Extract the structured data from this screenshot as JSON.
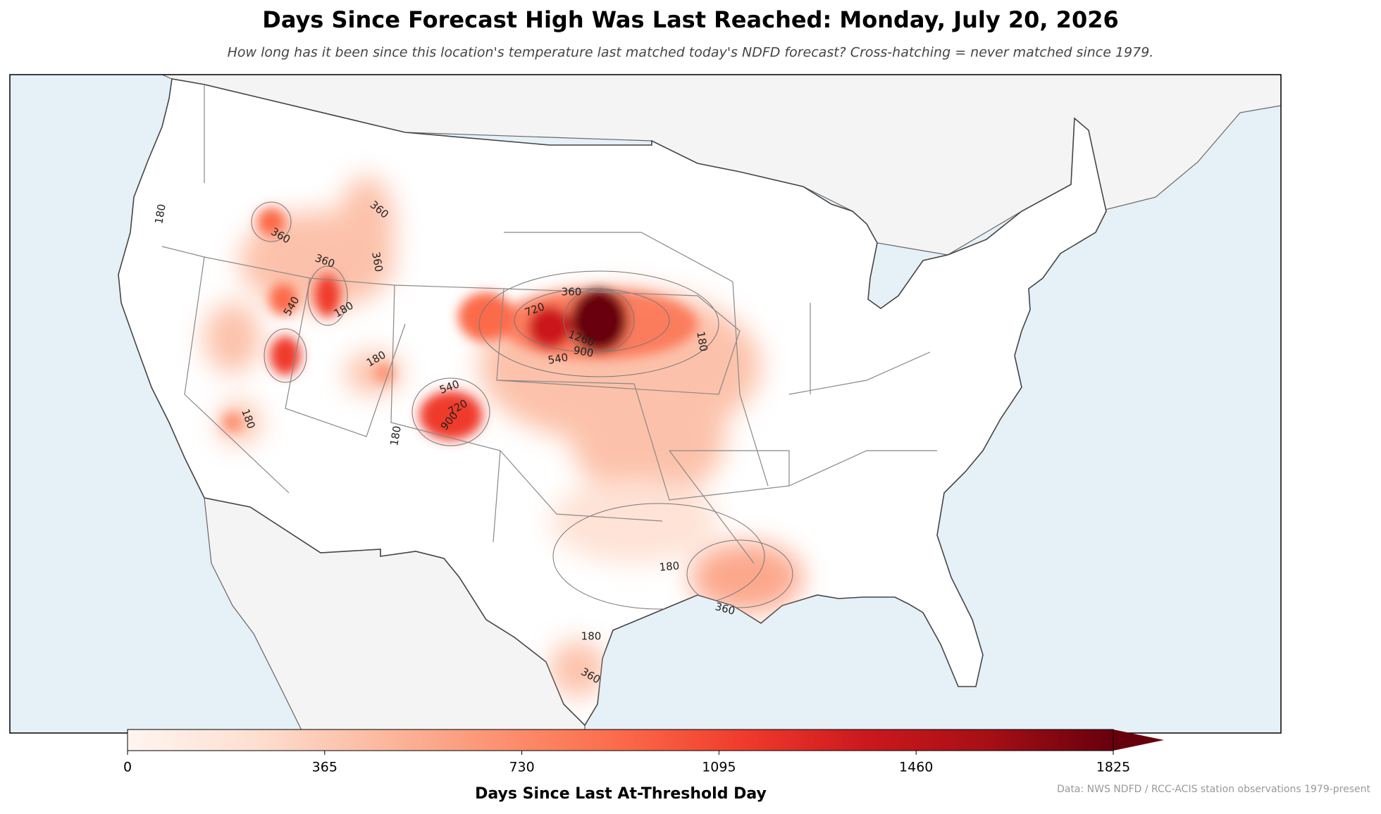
{
  "chart_data": {
    "type": "map",
    "title": "Days Since Forecast High Was Last Reached: Monday, July 20, 2026",
    "subtitle": "How long has it been since this location's temperature last matched today's NDFD forecast? Cross-hatching = never matched since 1979.",
    "colorbar": {
      "label": "Days Since Last At-Threshold Day",
      "lim": [
        0,
        1825
      ],
      "ticks": [
        0,
        365,
        730,
        1095,
        1460,
        1825
      ],
      "colors": [
        "#fff5f0",
        "#fee0d2",
        "#fcbba1",
        "#fc9272",
        "#fb6a4a",
        "#ef3b2c",
        "#cb181d",
        "#a50f15",
        "#67000d"
      ],
      "extend": "max"
    },
    "contour_labels": [
      180,
      360,
      360,
      540,
      180,
      360,
      360,
      180,
      360,
      720,
      540,
      900,
      1260,
      540,
      720,
      900,
      180,
      180,
      180,
      180,
      360,
      180,
      360
    ],
    "credit": "Data: NWS NDFD / RCC-ACIS station observations 1979-present"
  }
}
